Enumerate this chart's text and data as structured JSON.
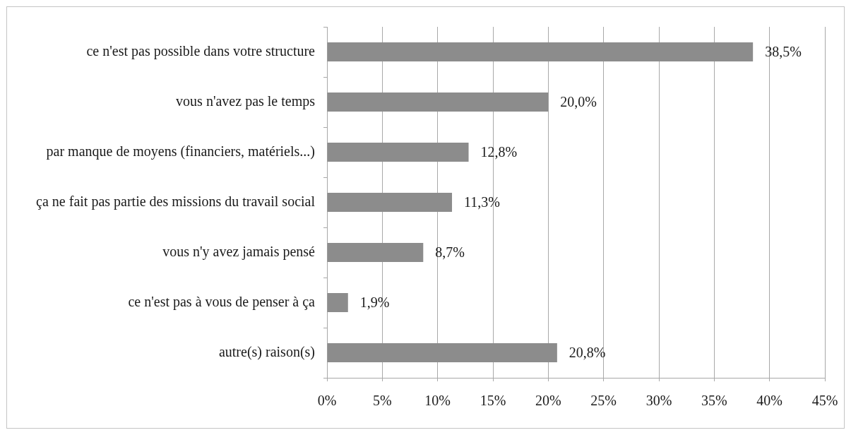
{
  "chart_data": {
    "type": "bar",
    "orientation": "horizontal",
    "categories": [
      "ce n'est pas possible dans votre structure",
      "vous n'avez pas le temps",
      "par manque de moyens (financiers, matériels...)",
      "ça ne fait pas partie des missions du travail social",
      "vous n'y avez jamais pensé",
      "ce n'est pas à vous de penser à ça",
      "autre(s) raison(s)"
    ],
    "values": [
      38.5,
      20.0,
      12.8,
      11.3,
      8.7,
      1.9,
      20.8
    ],
    "value_labels": [
      "38,5%",
      "20,0%",
      "12,8%",
      "11,3%",
      "8,7%",
      "1,9%",
      "20,8%"
    ],
    "color": "#8c8c8c",
    "xlim": [
      0,
      45
    ],
    "xticks": [
      {
        "value": 0,
        "label": "0%"
      },
      {
        "value": 5,
        "label": "5%"
      },
      {
        "value": 10,
        "label": "10%"
      },
      {
        "value": 15,
        "label": "15%"
      },
      {
        "value": 20,
        "label": "20%"
      },
      {
        "value": 25,
        "label": "25%"
      },
      {
        "value": 30,
        "label": "30%"
      },
      {
        "value": 35,
        "label": "35%"
      },
      {
        "value": 40,
        "label": "40%"
      },
      {
        "value": 45,
        "label": "45%"
      }
    ],
    "grid": "x"
  }
}
